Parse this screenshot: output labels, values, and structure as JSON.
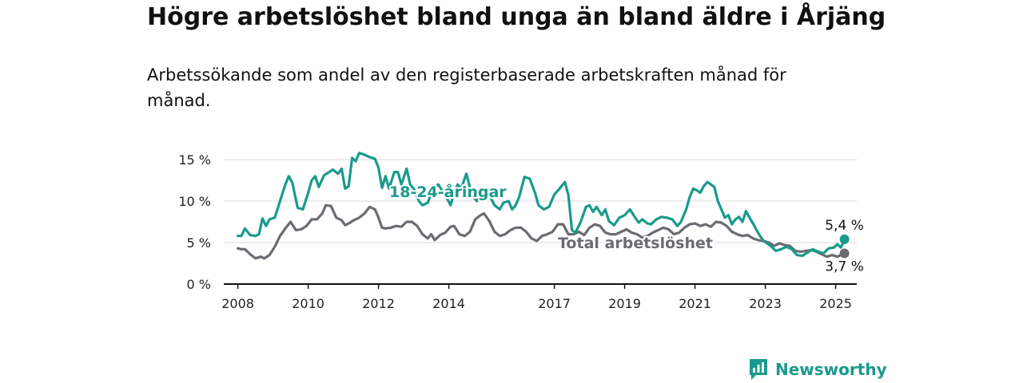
{
  "title": "Högre arbetslöshet bland unga än bland äldre i Årjäng",
  "subtitle": "Arbetssökande som andel av den registerbaserade arbetskraften månad för månad.",
  "brand": {
    "name": "Newsworthy",
    "color": "#1a9a8c"
  },
  "chart_data": {
    "type": "line",
    "x_unit": "year",
    "x_ticks": [
      2008,
      2010,
      2012,
      2014,
      2017,
      2019,
      2021,
      2023,
      2025
    ],
    "xlim": [
      2007.6,
      2025.6
    ],
    "y_ticks": [
      0,
      5,
      10,
      15
    ],
    "y_tick_labels": [
      "0 %",
      "5 %",
      "10 %",
      "15 %"
    ],
    "ylim": [
      0,
      15
    ],
    "grid": true,
    "series": [
      {
        "name": "18-24-åringar",
        "color": "#1a9a8c",
        "end_label": "5,4 %",
        "points": [
          [
            2008.0,
            5.8
          ],
          [
            2008.1,
            5.8
          ],
          [
            2008.2,
            6.7
          ],
          [
            2008.35,
            5.9
          ],
          [
            2008.5,
            5.8
          ],
          [
            2008.6,
            6.0
          ],
          [
            2008.7,
            7.9
          ],
          [
            2008.8,
            7.0
          ],
          [
            2008.9,
            7.8
          ],
          [
            2009.05,
            8.0
          ],
          [
            2009.2,
            10.0
          ],
          [
            2009.35,
            12.0
          ],
          [
            2009.45,
            13.0
          ],
          [
            2009.55,
            12.2
          ],
          [
            2009.7,
            9.2
          ],
          [
            2009.85,
            9.0
          ],
          [
            2010.0,
            11.0
          ],
          [
            2010.1,
            12.5
          ],
          [
            2010.2,
            13.0
          ],
          [
            2010.3,
            11.7
          ],
          [
            2010.45,
            13.1
          ],
          [
            2010.6,
            13.5
          ],
          [
            2010.7,
            13.8
          ],
          [
            2010.85,
            13.3
          ],
          [
            2010.95,
            13.9
          ],
          [
            2011.05,
            11.5
          ],
          [
            2011.15,
            11.8
          ],
          [
            2011.25,
            15.2
          ],
          [
            2011.35,
            14.8
          ],
          [
            2011.45,
            15.8
          ],
          [
            2011.6,
            15.6
          ],
          [
            2011.75,
            15.3
          ],
          [
            2011.9,
            15.1
          ],
          [
            2012.0,
            14.0
          ],
          [
            2012.1,
            11.6
          ],
          [
            2012.2,
            13.0
          ],
          [
            2012.3,
            11.5
          ],
          [
            2012.45,
            13.5
          ],
          [
            2012.55,
            13.5
          ],
          [
            2012.65,
            12.0
          ],
          [
            2012.8,
            13.9
          ],
          [
            2012.9,
            12.0
          ],
          [
            2013.0,
            11.5
          ],
          [
            2013.15,
            10.0
          ],
          [
            2013.25,
            9.5
          ],
          [
            2013.4,
            9.8
          ],
          [
            2013.55,
            11.5
          ],
          [
            2013.7,
            12.0
          ],
          [
            2013.85,
            11.0
          ],
          [
            2013.95,
            10.3
          ],
          [
            2014.05,
            9.5
          ],
          [
            2014.15,
            11.0
          ],
          [
            2014.25,
            12.0
          ],
          [
            2014.35,
            11.5
          ],
          [
            2014.5,
            13.3
          ],
          [
            2014.6,
            11.6
          ],
          [
            2014.7,
            10.5
          ],
          [
            2014.8,
            10.0
          ],
          [
            2014.95,
            10.8
          ],
          [
            2015.1,
            11.0
          ],
          [
            2015.2,
            10.3
          ],
          [
            2015.3,
            9.5
          ],
          [
            2015.45,
            9.0
          ],
          [
            2015.55,
            9.8
          ],
          [
            2015.7,
            10.0
          ],
          [
            2015.8,
            9.0
          ],
          [
            2015.9,
            9.5
          ],
          [
            2016.0,
            10.5
          ],
          [
            2016.15,
            12.9
          ],
          [
            2016.3,
            12.7
          ],
          [
            2016.45,
            11.0
          ],
          [
            2016.55,
            9.5
          ],
          [
            2016.7,
            9.0
          ],
          [
            2016.85,
            9.3
          ],
          [
            2017.0,
            10.8
          ],
          [
            2017.15,
            11.5
          ],
          [
            2017.3,
            12.3
          ],
          [
            2017.4,
            10.7
          ],
          [
            2017.5,
            6.5
          ],
          [
            2017.6,
            6.2
          ],
          [
            2017.75,
            7.5
          ],
          [
            2017.9,
            9.3
          ],
          [
            2018.0,
            9.5
          ],
          [
            2018.1,
            8.7
          ],
          [
            2018.2,
            9.3
          ],
          [
            2018.35,
            8.3
          ],
          [
            2018.45,
            9.0
          ],
          [
            2018.55,
            7.6
          ],
          [
            2018.7,
            7.1
          ],
          [
            2018.85,
            8.0
          ],
          [
            2019.0,
            8.3
          ],
          [
            2019.15,
            9.0
          ],
          [
            2019.3,
            8.0
          ],
          [
            2019.4,
            7.4
          ],
          [
            2019.5,
            7.8
          ],
          [
            2019.65,
            7.3
          ],
          [
            2019.75,
            7.2
          ],
          [
            2019.9,
            7.8
          ],
          [
            2020.05,
            8.1
          ],
          [
            2020.2,
            8.0
          ],
          [
            2020.35,
            7.8
          ],
          [
            2020.5,
            7.0
          ],
          [
            2020.6,
            7.5
          ],
          [
            2020.75,
            9.0
          ],
          [
            2020.85,
            10.5
          ],
          [
            2020.95,
            11.5
          ],
          [
            2021.05,
            11.3
          ],
          [
            2021.15,
            11.0
          ],
          [
            2021.25,
            11.8
          ],
          [
            2021.35,
            12.3
          ],
          [
            2021.45,
            12.0
          ],
          [
            2021.55,
            11.7
          ],
          [
            2021.65,
            10.0
          ],
          [
            2021.75,
            9.0
          ],
          [
            2021.85,
            8.0
          ],
          [
            2021.95,
            8.3
          ],
          [
            2022.05,
            7.2
          ],
          [
            2022.15,
            7.8
          ],
          [
            2022.25,
            8.1
          ],
          [
            2022.35,
            7.5
          ],
          [
            2022.45,
            8.8
          ],
          [
            2022.55,
            8.0
          ],
          [
            2022.65,
            7.3
          ],
          [
            2022.75,
            6.5
          ],
          [
            2022.85,
            5.8
          ],
          [
            2022.95,
            5.2
          ],
          [
            2023.05,
            4.9
          ],
          [
            2023.15,
            4.6
          ],
          [
            2023.3,
            4.0
          ],
          [
            2023.45,
            4.2
          ],
          [
            2023.6,
            4.5
          ],
          [
            2023.75,
            4.2
          ],
          [
            2023.9,
            3.5
          ],
          [
            2024.05,
            3.4
          ],
          [
            2024.2,
            3.8
          ],
          [
            2024.35,
            4.2
          ],
          [
            2024.5,
            3.9
          ],
          [
            2024.65,
            3.7
          ],
          [
            2024.8,
            4.3
          ],
          [
            2024.95,
            4.4
          ],
          [
            2025.05,
            4.8
          ],
          [
            2025.15,
            4.4
          ],
          [
            2025.25,
            5.4
          ]
        ]
      },
      {
        "name": "Total arbetslöshet",
        "color": "#6b6b72",
        "end_label": "3,7 %",
        "points": [
          [
            2008.0,
            4.3
          ],
          [
            2008.1,
            4.2
          ],
          [
            2008.2,
            4.2
          ],
          [
            2008.35,
            3.6
          ],
          [
            2008.5,
            3.1
          ],
          [
            2008.65,
            3.3
          ],
          [
            2008.75,
            3.1
          ],
          [
            2008.9,
            3.5
          ],
          [
            2009.05,
            4.5
          ],
          [
            2009.2,
            5.8
          ],
          [
            2009.35,
            6.7
          ],
          [
            2009.5,
            7.5
          ],
          [
            2009.65,
            6.5
          ],
          [
            2009.8,
            6.6
          ],
          [
            2009.95,
            7.0
          ],
          [
            2010.1,
            7.8
          ],
          [
            2010.25,
            7.8
          ],
          [
            2010.4,
            8.5
          ],
          [
            2010.5,
            9.5
          ],
          [
            2010.65,
            9.4
          ],
          [
            2010.8,
            8.0
          ],
          [
            2010.95,
            7.7
          ],
          [
            2011.05,
            7.1
          ],
          [
            2011.15,
            7.3
          ],
          [
            2011.3,
            7.7
          ],
          [
            2011.45,
            8.0
          ],
          [
            2011.6,
            8.5
          ],
          [
            2011.75,
            9.3
          ],
          [
            2011.9,
            9.0
          ],
          [
            2012.0,
            8.0
          ],
          [
            2012.1,
            6.8
          ],
          [
            2012.2,
            6.7
          ],
          [
            2012.35,
            6.8
          ],
          [
            2012.5,
            7.0
          ],
          [
            2012.65,
            6.9
          ],
          [
            2012.8,
            7.5
          ],
          [
            2012.95,
            7.5
          ],
          [
            2013.1,
            7.0
          ],
          [
            2013.25,
            6.0
          ],
          [
            2013.4,
            5.5
          ],
          [
            2013.5,
            6.0
          ],
          [
            2013.6,
            5.3
          ],
          [
            2013.75,
            5.9
          ],
          [
            2013.9,
            6.2
          ],
          [
            2014.05,
            6.9
          ],
          [
            2014.15,
            7.0
          ],
          [
            2014.3,
            6.0
          ],
          [
            2014.45,
            5.8
          ],
          [
            2014.6,
            6.3
          ],
          [
            2014.75,
            7.8
          ],
          [
            2014.9,
            8.3
          ],
          [
            2015.0,
            8.5
          ],
          [
            2015.15,
            7.6
          ],
          [
            2015.3,
            6.3
          ],
          [
            2015.45,
            5.8
          ],
          [
            2015.6,
            6.0
          ],
          [
            2015.75,
            6.5
          ],
          [
            2015.9,
            6.8
          ],
          [
            2016.05,
            6.8
          ],
          [
            2016.2,
            6.3
          ],
          [
            2016.35,
            5.5
          ],
          [
            2016.5,
            5.2
          ],
          [
            2016.65,
            5.8
          ],
          [
            2016.8,
            6.0
          ],
          [
            2016.95,
            6.3
          ],
          [
            2017.1,
            7.2
          ],
          [
            2017.25,
            7.2
          ],
          [
            2017.4,
            6.0
          ],
          [
            2017.55,
            6.0
          ],
          [
            2017.7,
            6.3
          ],
          [
            2017.85,
            5.9
          ],
          [
            2018.0,
            6.8
          ],
          [
            2018.15,
            7.2
          ],
          [
            2018.3,
            7.0
          ],
          [
            2018.45,
            6.2
          ],
          [
            2018.6,
            6.0
          ],
          [
            2018.75,
            6.0
          ],
          [
            2018.9,
            6.3
          ],
          [
            2019.05,
            6.6
          ],
          [
            2019.2,
            6.2
          ],
          [
            2019.35,
            6.0
          ],
          [
            2019.5,
            5.6
          ],
          [
            2019.65,
            5.8
          ],
          [
            2019.8,
            6.2
          ],
          [
            2019.95,
            6.5
          ],
          [
            2020.1,
            6.8
          ],
          [
            2020.25,
            6.6
          ],
          [
            2020.4,
            6.0
          ],
          [
            2020.55,
            6.2
          ],
          [
            2020.7,
            6.8
          ],
          [
            2020.85,
            7.2
          ],
          [
            2021.0,
            7.3
          ],
          [
            2021.15,
            7.0
          ],
          [
            2021.3,
            7.2
          ],
          [
            2021.45,
            6.9
          ],
          [
            2021.6,
            7.5
          ],
          [
            2021.75,
            7.4
          ],
          [
            2021.9,
            7.0
          ],
          [
            2022.05,
            6.3
          ],
          [
            2022.2,
            6.0
          ],
          [
            2022.35,
            5.8
          ],
          [
            2022.5,
            5.9
          ],
          [
            2022.65,
            5.5
          ],
          [
            2022.8,
            5.3
          ],
          [
            2022.95,
            5.2
          ],
          [
            2023.1,
            5.0
          ],
          [
            2023.25,
            4.6
          ],
          [
            2023.4,
            4.9
          ],
          [
            2023.55,
            4.7
          ],
          [
            2023.7,
            4.6
          ],
          [
            2023.85,
            4.0
          ],
          [
            2024.0,
            3.9
          ],
          [
            2024.15,
            4.0
          ],
          [
            2024.3,
            4.1
          ],
          [
            2024.45,
            3.9
          ],
          [
            2024.6,
            3.6
          ],
          [
            2024.75,
            3.3
          ],
          [
            2024.9,
            3.5
          ],
          [
            2025.05,
            3.3
          ],
          [
            2025.15,
            3.5
          ],
          [
            2025.25,
            3.7
          ]
        ]
      }
    ]
  }
}
